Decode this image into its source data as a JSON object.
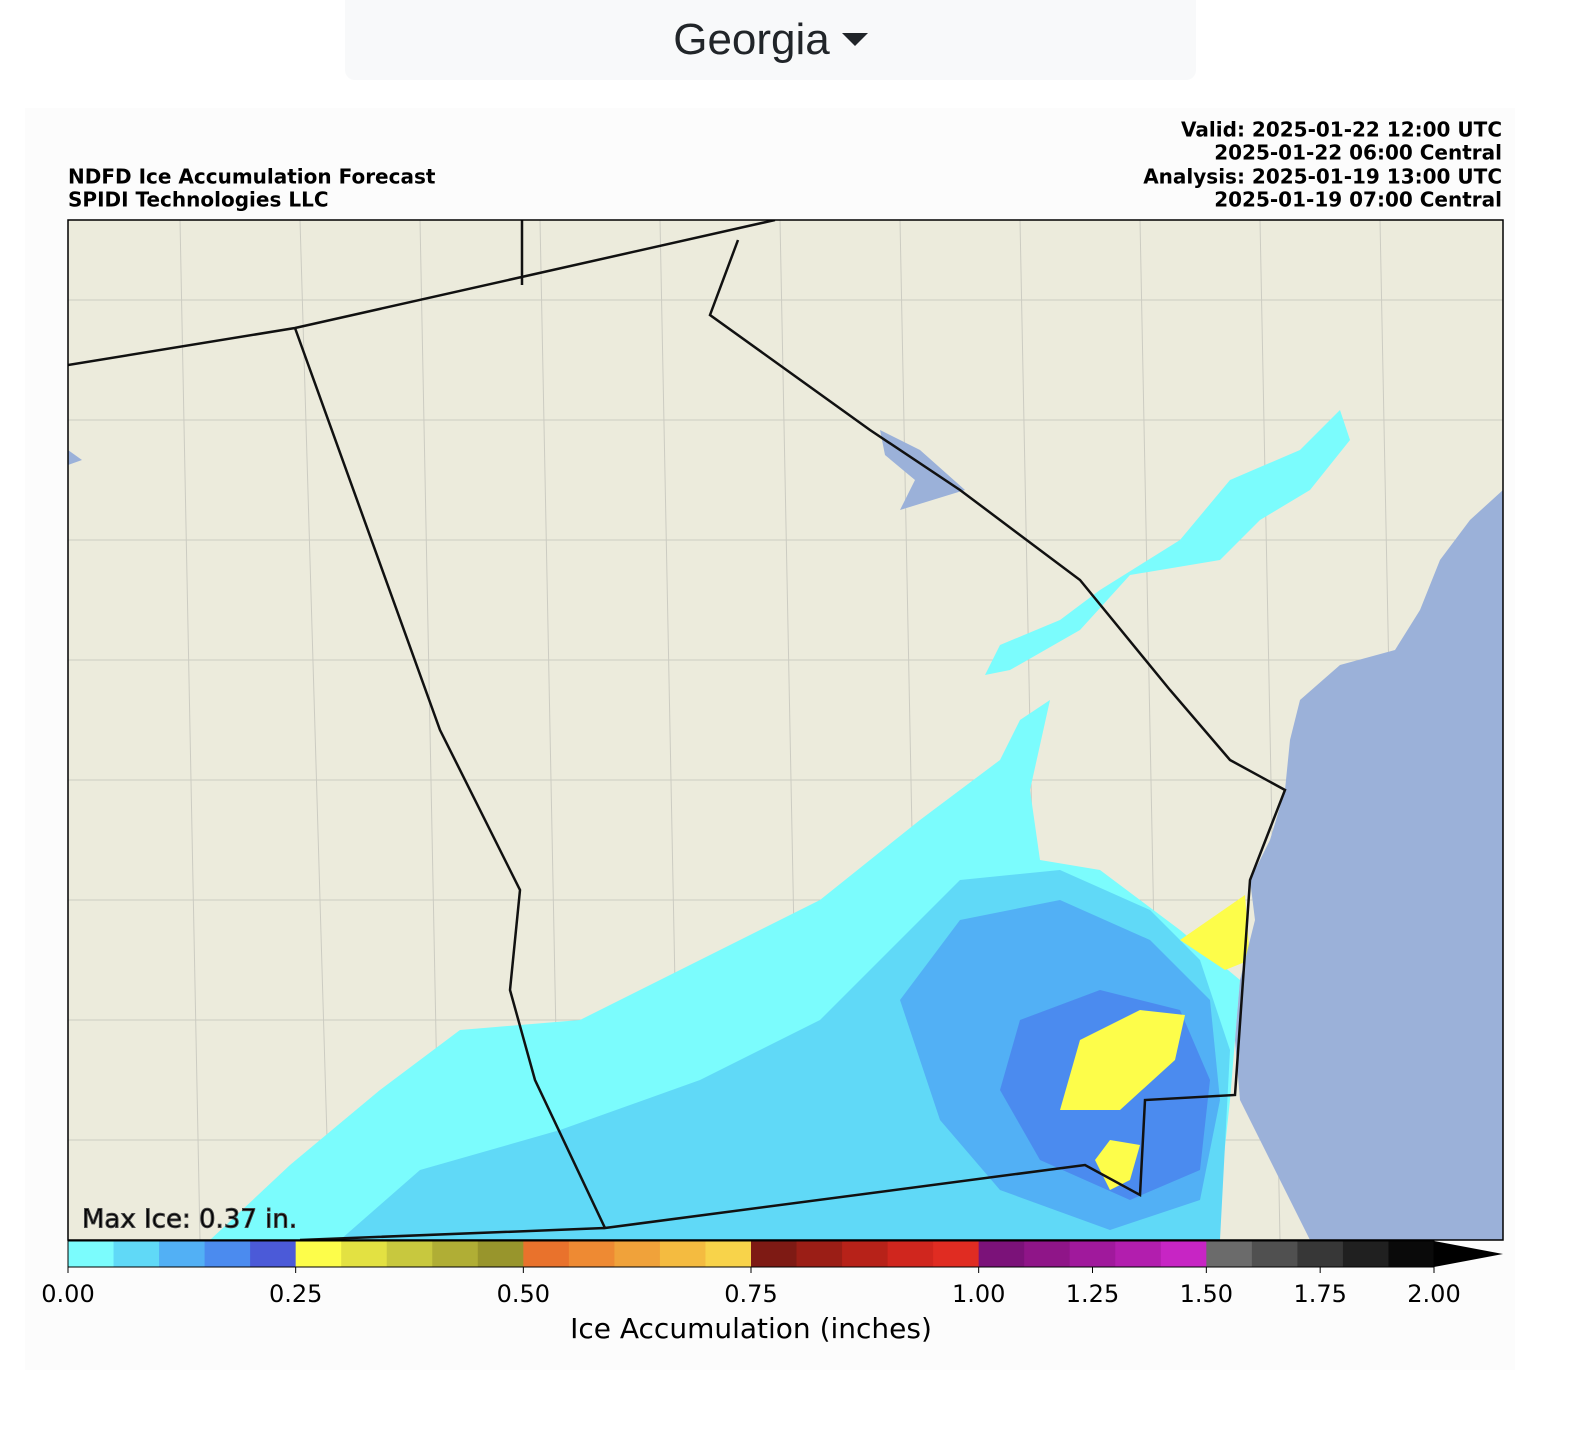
{
  "selector": {
    "label": "Georgia"
  },
  "chart_data": {
    "type": "map",
    "title_lines": [
      "NDFD Ice Accumulation Forecast",
      "SPIDI Technologies LLC"
    ],
    "valid_lines": [
      "Valid: 2025-01-22 12:00 UTC",
      "2025-01-22 06:00 Central",
      "Analysis: 2025-01-19 13:00 UTC",
      "2025-01-19 07:00 Central"
    ],
    "annotation": "Max Ice: 0.37 in.",
    "colorbar": {
      "label": "Ice Accumulation (inches)",
      "boundaries": [
        0,
        0.05,
        0.1,
        0.15,
        0.2,
        0.25,
        0.3,
        0.35,
        0.4,
        0.45,
        0.5,
        0.55,
        0.6,
        0.65,
        0.7,
        0.75,
        0.8,
        0.85,
        0.9,
        0.95,
        1.0,
        1.1,
        1.2,
        1.3,
        1.4,
        1.5,
        1.6,
        1.7,
        1.8,
        1.9,
        2.0
      ],
      "colors": [
        "#7bfcfd",
        "#60d9f7",
        "#52b0f5",
        "#4b8bef",
        "#4b5ad8",
        "#fdfd4a",
        "#e3e142",
        "#c8c83e",
        "#b0ae35",
        "#98952c",
        "#e9722c",
        "#ee8a33",
        "#f0a23a",
        "#f4bb40",
        "#f8d34a",
        "#7e1a14",
        "#9b1e16",
        "#b72219",
        "#d0261e",
        "#e02c22",
        "#7b1279",
        "#8f1588",
        "#a0199c",
        "#b21eae",
        "#c725c4",
        "#6b6b6b",
        "#505050",
        "#373737",
        "#202020",
        "#0a0a0a"
      ],
      "extend": "max",
      "extend_color": "#000000",
      "ticks": [
        {
          "value": 0,
          "label": "0.00"
        },
        {
          "value": 0.25,
          "label": "0.25"
        },
        {
          "value": 0.5,
          "label": "0.50"
        },
        {
          "value": 0.75,
          "label": "0.75"
        },
        {
          "value": 1.0,
          "label": "1.00"
        },
        {
          "value": 1.25,
          "label": "1.25"
        },
        {
          "value": 1.5,
          "label": "1.50"
        },
        {
          "value": 1.75,
          "label": "1.75"
        },
        {
          "value": 2.0,
          "label": "2.00"
        }
      ]
    }
  }
}
